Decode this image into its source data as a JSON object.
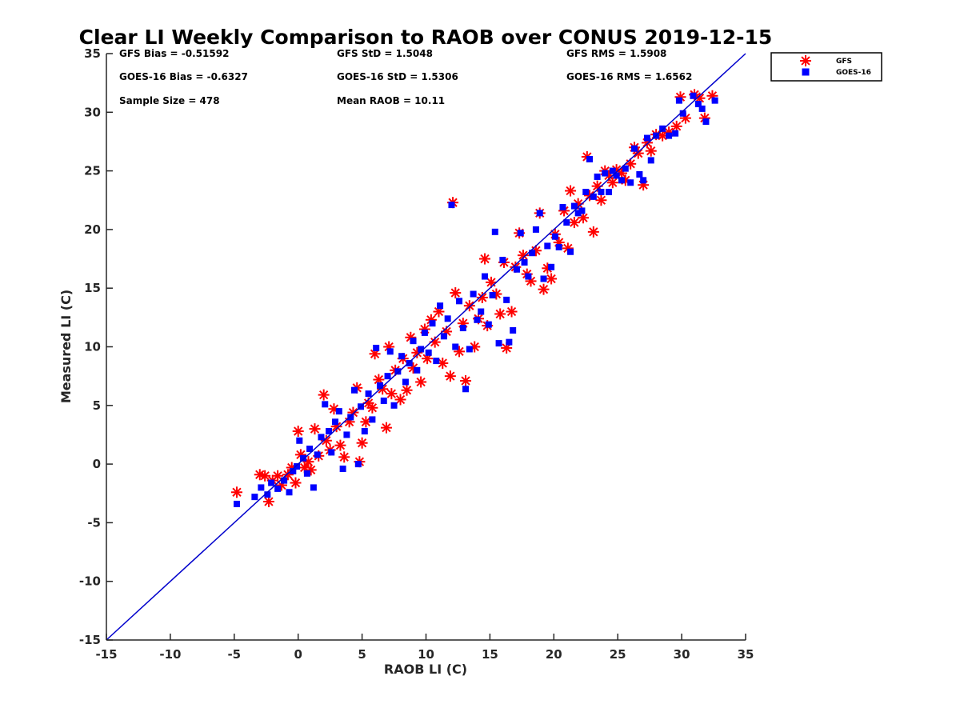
{
  "chart_data": {
    "type": "scatter",
    "title": "Clear LI Weekly Comparison to RAOB over CONUS 2019-12-15",
    "xlabel": "RAOB LI (C)",
    "ylabel": "Measured LI (C)",
    "xlim": [
      -15,
      35
    ],
    "ylim": [
      -15,
      35
    ],
    "xticks": [
      "-15",
      "-10",
      "-5",
      "0",
      "5",
      "10",
      "15",
      "20",
      "25",
      "30",
      "35"
    ],
    "yticks": [
      "-15",
      "-10",
      "-5",
      "0",
      "5",
      "10",
      "15",
      "20",
      "25",
      "30",
      "35"
    ],
    "grid": false,
    "legend_position": "outside top-right",
    "reference_line": {
      "name": "1:1 line",
      "from": [
        -15,
        -15
      ],
      "to": [
        35,
        35
      ],
      "color": "#0000cc"
    },
    "stats": {
      "gfs_bias": "GFS Bias = -0.51592",
      "gfs_std": "GFS StD = 1.5048",
      "gfs_rms": "GFS RMS = 1.5908",
      "goes_bias": "GOES-16 Bias = -0.6327",
      "goes_std": "GOES-16 StD = 1.5306",
      "goes_rms": "GOES-16 RMS = 1.6562",
      "sample_size": "Sample Size = 478",
      "mean_raob": "Mean RAOB = 10.11"
    },
    "series": [
      {
        "name": "GFS",
        "marker": "asterisk",
        "color": "#ff0000",
        "points": [
          [
            -4.8,
            -2.4
          ],
          [
            -3.0,
            -0.9
          ],
          [
            -2.6,
            -1.0
          ],
          [
            -2.3,
            -3.2
          ],
          [
            -2.0,
            -1.4
          ],
          [
            -1.6,
            -1.0
          ],
          [
            -1.3,
            -1.8
          ],
          [
            -0.8,
            -0.9
          ],
          [
            -0.5,
            -0.3
          ],
          [
            -0.2,
            -1.6
          ],
          [
            0.0,
            2.8
          ],
          [
            0.2,
            0.8
          ],
          [
            0.5,
            -0.3
          ],
          [
            0.8,
            0.2
          ],
          [
            1.0,
            -0.5
          ],
          [
            1.3,
            3.0
          ],
          [
            1.6,
            0.7
          ],
          [
            2.0,
            5.9
          ],
          [
            2.2,
            2.0
          ],
          [
            2.5,
            1.2
          ],
          [
            2.8,
            4.7
          ],
          [
            3.0,
            3.2
          ],
          [
            3.3,
            1.6
          ],
          [
            3.6,
            0.6
          ],
          [
            4.0,
            3.6
          ],
          [
            4.3,
            4.4
          ],
          [
            4.6,
            6.5
          ],
          [
            4.8,
            0.2
          ],
          [
            5.0,
            1.8
          ],
          [
            5.3,
            3.6
          ],
          [
            5.5,
            5.2
          ],
          [
            5.8,
            4.8
          ],
          [
            6.0,
            9.4
          ],
          [
            6.3,
            7.2
          ],
          [
            6.6,
            6.4
          ],
          [
            6.9,
            3.1
          ],
          [
            7.1,
            10.0
          ],
          [
            7.3,
            6.0
          ],
          [
            7.6,
            8.0
          ],
          [
            8.0,
            5.5
          ],
          [
            8.2,
            9.0
          ],
          [
            8.5,
            6.3
          ],
          [
            8.8,
            10.8
          ],
          [
            9.0,
            8.2
          ],
          [
            9.3,
            9.5
          ],
          [
            9.6,
            7.0
          ],
          [
            9.9,
            11.5
          ],
          [
            10.1,
            9.0
          ],
          [
            10.4,
            12.3
          ],
          [
            10.7,
            10.4
          ],
          [
            11.0,
            13.0
          ],
          [
            11.3,
            8.6
          ],
          [
            11.6,
            11.3
          ],
          [
            11.9,
            7.5
          ],
          [
            12.1,
            22.3
          ],
          [
            12.3,
            14.6
          ],
          [
            12.6,
            9.6
          ],
          [
            12.9,
            12.0
          ],
          [
            13.1,
            7.1
          ],
          [
            13.4,
            13.5
          ],
          [
            13.8,
            10.0
          ],
          [
            14.1,
            12.4
          ],
          [
            14.4,
            14.2
          ],
          [
            14.6,
            17.5
          ],
          [
            14.8,
            11.8
          ],
          [
            15.1,
            15.5
          ],
          [
            15.5,
            14.5
          ],
          [
            15.8,
            12.8
          ],
          [
            16.1,
            17.2
          ],
          [
            16.3,
            9.9
          ],
          [
            16.7,
            13.0
          ],
          [
            17.0,
            16.8
          ],
          [
            17.3,
            19.7
          ],
          [
            17.6,
            17.8
          ],
          [
            17.9,
            16.2
          ],
          [
            18.2,
            15.6
          ],
          [
            18.6,
            18.2
          ],
          [
            18.9,
            21.4
          ],
          [
            19.2,
            14.9
          ],
          [
            19.5,
            16.7
          ],
          [
            19.8,
            15.8
          ],
          [
            20.1,
            19.6
          ],
          [
            20.4,
            18.9
          ],
          [
            20.8,
            21.6
          ],
          [
            21.1,
            18.4
          ],
          [
            21.3,
            23.3
          ],
          [
            21.6,
            20.6
          ],
          [
            21.9,
            22.2
          ],
          [
            22.3,
            21.0
          ],
          [
            22.6,
            26.2
          ],
          [
            22.8,
            22.9
          ],
          [
            23.1,
            19.8
          ],
          [
            23.4,
            23.7
          ],
          [
            23.7,
            22.5
          ],
          [
            24.0,
            25.0
          ],
          [
            24.3,
            24.6
          ],
          [
            24.6,
            24.0
          ],
          [
            24.9,
            25.1
          ],
          [
            25.3,
            24.8
          ],
          [
            25.6,
            24.2
          ],
          [
            26.0,
            25.6
          ],
          [
            26.3,
            27.0
          ],
          [
            26.6,
            26.5
          ],
          [
            27.0,
            23.8
          ],
          [
            27.3,
            27.4
          ],
          [
            27.6,
            26.7
          ],
          [
            28.0,
            28.1
          ],
          [
            28.5,
            28.0
          ],
          [
            29.0,
            28.3
          ],
          [
            29.6,
            28.8
          ],
          [
            29.9,
            31.3
          ],
          [
            30.3,
            29.5
          ],
          [
            31.0,
            31.5
          ],
          [
            31.4,
            31.2
          ],
          [
            31.8,
            29.5
          ],
          [
            32.4,
            31.4
          ]
        ]
      },
      {
        "name": "GOES-16",
        "marker": "square",
        "color": "#0000ff",
        "points": [
          [
            -4.8,
            -3.4
          ],
          [
            -3.4,
            -2.8
          ],
          [
            -2.9,
            -2.0
          ],
          [
            -2.4,
            -2.6
          ],
          [
            -2.1,
            -1.6
          ],
          [
            -1.6,
            -2.1
          ],
          [
            -1.1,
            -1.4
          ],
          [
            -0.7,
            -2.4
          ],
          [
            -0.4,
            -0.6
          ],
          [
            -0.1,
            -0.2
          ],
          [
            0.1,
            2.0
          ],
          [
            0.4,
            0.5
          ],
          [
            0.7,
            -0.8
          ],
          [
            0.9,
            1.3
          ],
          [
            1.2,
            -2.0
          ],
          [
            1.5,
            0.8
          ],
          [
            1.8,
            2.3
          ],
          [
            2.1,
            5.1
          ],
          [
            2.4,
            2.8
          ],
          [
            2.6,
            1.0
          ],
          [
            2.9,
            3.6
          ],
          [
            3.2,
            4.5
          ],
          [
            3.5,
            -0.4
          ],
          [
            3.8,
            2.5
          ],
          [
            4.1,
            4.0
          ],
          [
            4.4,
            6.3
          ],
          [
            4.7,
            0.0
          ],
          [
            4.9,
            4.9
          ],
          [
            5.2,
            2.8
          ],
          [
            5.5,
            6.0
          ],
          [
            5.8,
            3.8
          ],
          [
            6.1,
            9.9
          ],
          [
            6.4,
            6.7
          ],
          [
            6.7,
            5.4
          ],
          [
            7.0,
            7.5
          ],
          [
            7.2,
            9.6
          ],
          [
            7.5,
            5.0
          ],
          [
            7.8,
            7.9
          ],
          [
            8.1,
            9.2
          ],
          [
            8.4,
            7.0
          ],
          [
            8.7,
            8.6
          ],
          [
            9.0,
            10.5
          ],
          [
            9.3,
            8.0
          ],
          [
            9.6,
            9.8
          ],
          [
            9.9,
            11.2
          ],
          [
            10.2,
            9.5
          ],
          [
            10.5,
            12.0
          ],
          [
            10.8,
            8.8
          ],
          [
            11.1,
            13.5
          ],
          [
            11.4,
            10.9
          ],
          [
            11.7,
            12.4
          ],
          [
            12.0,
            22.1
          ],
          [
            12.3,
            10.0
          ],
          [
            12.6,
            13.9
          ],
          [
            12.9,
            11.6
          ],
          [
            13.1,
            6.4
          ],
          [
            13.4,
            9.8
          ],
          [
            13.7,
            14.5
          ],
          [
            14.0,
            12.3
          ],
          [
            14.3,
            13.0
          ],
          [
            14.6,
            16.0
          ],
          [
            14.9,
            11.9
          ],
          [
            15.2,
            14.4
          ],
          [
            15.4,
            19.8
          ],
          [
            15.7,
            10.3
          ],
          [
            16.0,
            17.4
          ],
          [
            16.3,
            14.0
          ],
          [
            16.5,
            10.4
          ],
          [
            16.8,
            11.4
          ],
          [
            17.1,
            16.6
          ],
          [
            17.4,
            19.7
          ],
          [
            17.7,
            17.2
          ],
          [
            18.0,
            16.0
          ],
          [
            18.3,
            18.0
          ],
          [
            18.6,
            20.0
          ],
          [
            18.9,
            21.4
          ],
          [
            19.2,
            15.8
          ],
          [
            19.5,
            18.6
          ],
          [
            19.8,
            16.8
          ],
          [
            20.1,
            19.4
          ],
          [
            20.4,
            18.5
          ],
          [
            20.7,
            21.9
          ],
          [
            21.0,
            20.6
          ],
          [
            21.3,
            18.1
          ],
          [
            21.6,
            22.0
          ],
          [
            21.9,
            21.4
          ],
          [
            22.2,
            21.6
          ],
          [
            22.5,
            23.2
          ],
          [
            22.8,
            26.0
          ],
          [
            23.1,
            22.8
          ],
          [
            23.4,
            24.5
          ],
          [
            23.7,
            23.2
          ],
          [
            24.0,
            24.8
          ],
          [
            24.3,
            23.2
          ],
          [
            24.6,
            25.0
          ],
          [
            24.9,
            24.6
          ],
          [
            25.3,
            24.2
          ],
          [
            25.6,
            25.2
          ],
          [
            26.0,
            24.0
          ],
          [
            26.3,
            26.9
          ],
          [
            26.7,
            24.7
          ],
          [
            27.0,
            24.2
          ],
          [
            27.3,
            27.8
          ],
          [
            27.6,
            25.9
          ],
          [
            28.0,
            28.0
          ],
          [
            28.5,
            28.6
          ],
          [
            29.0,
            28.0
          ],
          [
            29.5,
            28.2
          ],
          [
            29.8,
            31.0
          ],
          [
            30.1,
            29.9
          ],
          [
            30.9,
            31.4
          ],
          [
            31.3,
            30.7
          ],
          [
            31.6,
            30.3
          ],
          [
            31.9,
            29.2
          ],
          [
            32.6,
            31.0
          ]
        ]
      }
    ]
  }
}
